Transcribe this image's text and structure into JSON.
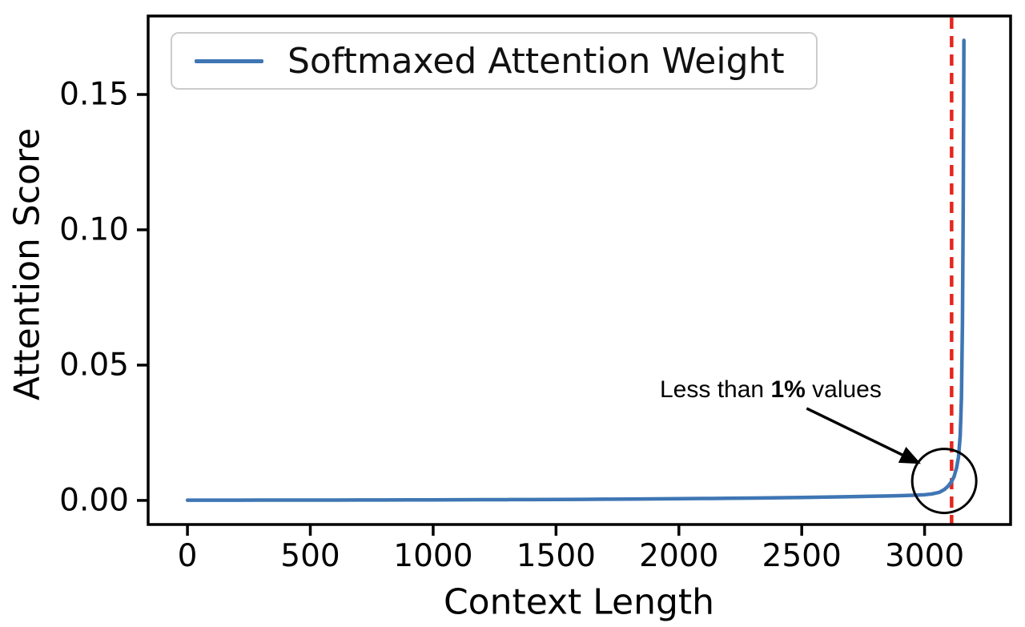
{
  "chart_data": {
    "type": "line",
    "title": "",
    "xlabel": "Context Length",
    "ylabel": "Attention Score",
    "xlim": [
      -160,
      3350
    ],
    "ylim": [
      -0.0089,
      0.179
    ],
    "grid": false,
    "xticks": [
      0,
      500,
      1000,
      1500,
      2000,
      2500,
      3000
    ],
    "xtick_labels": [
      "0",
      "500",
      "1000",
      "1500",
      "2000",
      "2500",
      "3000"
    ],
    "yticks": [
      0,
      0.05,
      0.1,
      0.15
    ],
    "ytick_labels": [
      "0.00",
      "0.05",
      "0.10",
      "0.15"
    ],
    "legend": {
      "position": "upper-left",
      "entries": [
        {
          "label": "Softmaxed Attention Weight",
          "color": "#3f76b4"
        }
      ]
    },
    "series": [
      {
        "name": "Softmaxed Attention Weight",
        "color": "#3f76b4",
        "x": [
          0,
          100,
          200,
          300,
          400,
          500,
          600,
          700,
          800,
          900,
          1000,
          1100,
          1200,
          1300,
          1400,
          1500,
          1600,
          1700,
          1800,
          1900,
          2000,
          2100,
          2200,
          2300,
          2400,
          2500,
          2600,
          2700,
          2800,
          2850,
          2900,
          2950,
          3000,
          3030,
          3060,
          3080,
          3095,
          3110,
          3120,
          3130,
          3138,
          3145,
          3150,
          3154,
          3157,
          3159,
          3160
        ],
        "y": [
          8e-05,
          9e-05,
          0.0001,
          0.00011,
          0.00012,
          0.00013,
          0.00014,
          0.00015,
          0.00017,
          0.00019,
          0.00021,
          0.00023,
          0.00026,
          0.00029,
          0.00032,
          0.00036,
          0.0004,
          0.00045,
          0.0005,
          0.00056,
          0.00063,
          0.0007,
          0.00078,
          0.00088,
          0.00098,
          0.0011,
          0.00123,
          0.00138,
          0.00155,
          0.00165,
          0.00175,
          0.0019,
          0.0021,
          0.0024,
          0.003,
          0.004,
          0.0052,
          0.007,
          0.0088,
          0.012,
          0.016,
          0.024,
          0.038,
          0.065,
          0.105,
          0.145,
          0.17
        ]
      }
    ],
    "vline": {
      "x": 3110,
      "color": "#e5261d",
      "style": "dashed"
    },
    "annotation": {
      "text_prefix": "Less than ",
      "text_bold": "1%",
      "text_suffix": " values",
      "arrow": {
        "tail": {
          "x": 2520,
          "y": 0.034
        },
        "head": {
          "x": 2985,
          "y": 0.0135
        }
      },
      "circle": {
        "x": 3080,
        "y": 0.0072,
        "radius_px": 40
      }
    }
  }
}
